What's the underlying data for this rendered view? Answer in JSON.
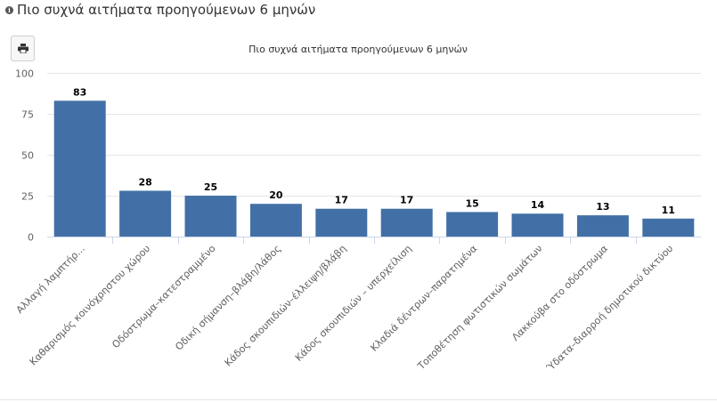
{
  "panel": {
    "title": "Πιο συχνά αιτήματα προηγούμενων 6 μηνών",
    "info_icon": "info-circle-icon",
    "print_icon": "print-icon"
  },
  "colors": {
    "bar": "#4270a6",
    "grid": "#e6e6e6",
    "axis_text": "#606060",
    "label_text": "#000000"
  },
  "chart_data": {
    "type": "bar",
    "title": "Πιο συχνά αιτήματα προηγούμενων 6 μηνών",
    "xlabel": "",
    "ylabel": "",
    "ylim": [
      0,
      100
    ],
    "yticks": [
      0,
      25,
      50,
      75,
      100
    ],
    "grid": true,
    "categories": [
      "Αλλαγή λαμπτήρ...",
      "Καθαρισμός κοινόχρηστου χώρου",
      "Οδόστρωμα–κατεστραμμένο",
      "Οδική σήμανση–βλάβη/λάθος",
      "Κάδος σκουπιδιών–έλλειψη/βλάβη",
      "Κάδος σκουπιδιών – υπερχείλιση",
      "Κλαδιά δέντρων–παρατημένα",
      "Τοποθέτηση φωτιστικών σωμάτων",
      "Λακκούβα στο οδόστρωμα",
      "Ύδατα–διαρροή δημοτικού δικτύου"
    ],
    "values": [
      83,
      28,
      25,
      20,
      17,
      17,
      15,
      14,
      13,
      11
    ]
  }
}
